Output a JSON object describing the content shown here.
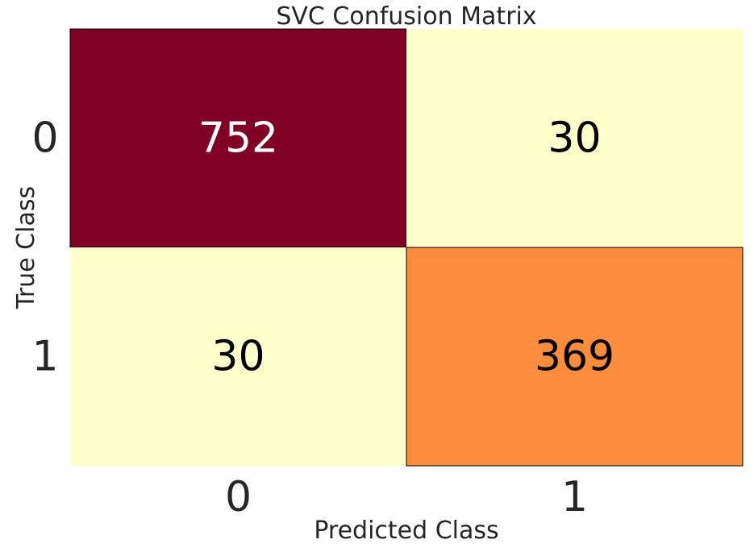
{
  "chart_data": {
    "type": "heatmap",
    "title": "SVC Confusion Matrix",
    "xlabel": "Predicted Class",
    "ylabel": "True Class",
    "x_categories": [
      "0",
      "1"
    ],
    "y_categories": [
      "0",
      "1"
    ],
    "values": [
      [
        752,
        30
      ],
      [
        30,
        369
      ]
    ],
    "colormap": "YlOrRd",
    "cell_colors": [
      [
        "#800026",
        "#ffffcc"
      ],
      [
        "#ffffcc",
        "#fd8d3c"
      ]
    ],
    "text_colors": [
      [
        "#ffffff",
        "#000000"
      ],
      [
        "#000000",
        "#000000"
      ]
    ],
    "grid": false,
    "colorbar": false
  }
}
